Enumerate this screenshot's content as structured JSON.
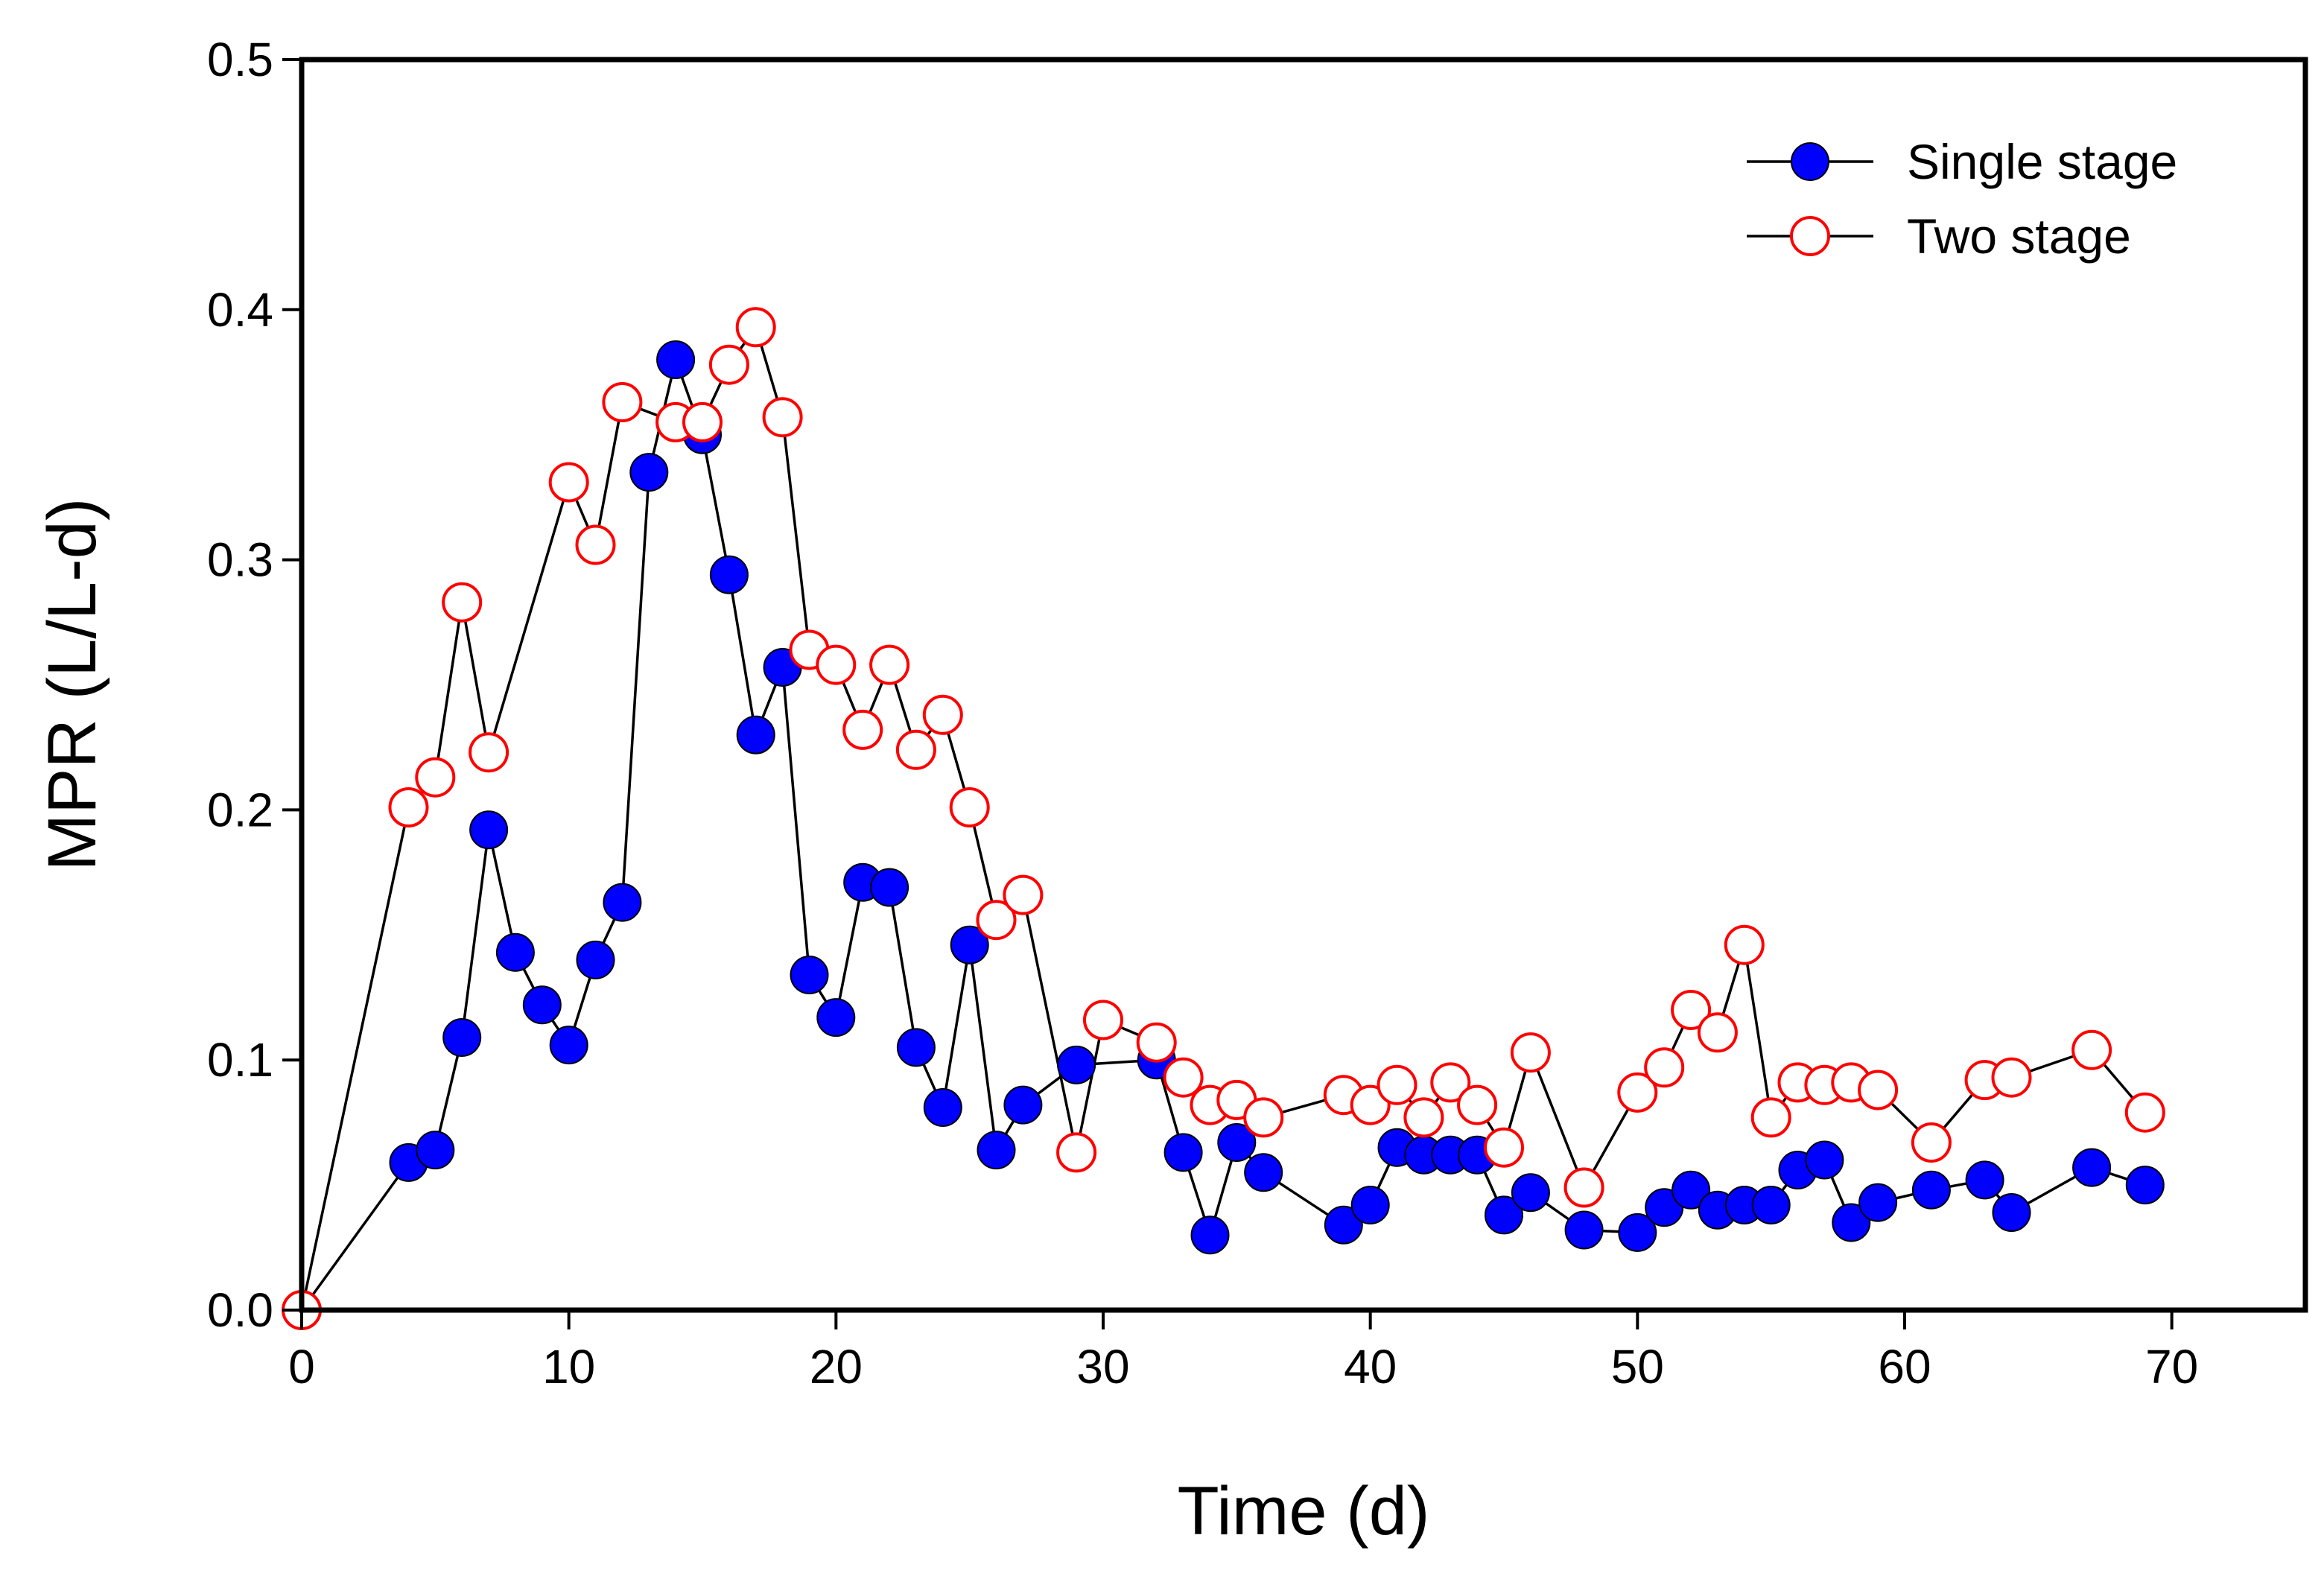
{
  "chart_data": {
    "type": "line",
    "xlabel": "Time (d)",
    "ylabel": "MPR (L/L-d)",
    "xlim": [
      0,
      75
    ],
    "ylim": [
      0,
      0.5
    ],
    "xticks": [
      0,
      10,
      20,
      30,
      40,
      50,
      60,
      70
    ],
    "xtick_labels": [
      "0",
      "10",
      "20",
      "30",
      "40",
      "50",
      "60",
      "70"
    ],
    "yticks": [
      0,
      0.1,
      0.2,
      0.3,
      0.4,
      0.5
    ],
    "ytick_labels": [
      "0.0",
      "0.1",
      "0.2",
      "0.3",
      "0.4",
      "0.5"
    ],
    "grid": false,
    "legend_position": "top-right",
    "series": [
      {
        "name": "Single stage",
        "marker": "filled-circle",
        "color": "#0000ff",
        "points": [
          [
            0,
            0
          ],
          [
            4,
            0.059
          ],
          [
            5,
            0.064
          ],
          [
            6,
            0.109
          ],
          [
            7,
            0.192
          ],
          [
            8,
            0.143
          ],
          [
            9,
            0.122
          ],
          [
            10,
            0.106
          ],
          [
            11,
            0.14
          ],
          [
            12,
            0.163
          ],
          [
            13,
            0.335
          ],
          [
            14,
            0.38
          ],
          [
            15,
            0.35
          ],
          [
            16,
            0.294
          ],
          [
            17,
            0.23
          ],
          [
            18,
            0.257
          ],
          [
            19,
            0.134
          ],
          [
            20,
            0.117
          ],
          [
            21,
            0.171
          ],
          [
            22,
            0.169
          ],
          [
            23,
            0.105
          ],
          [
            24,
            0.081
          ],
          [
            25,
            0.146
          ],
          [
            26,
            0.064
          ],
          [
            27,
            0.082
          ],
          [
            29,
            0.098
          ],
          [
            32,
            0.1
          ],
          [
            33,
            0.063
          ],
          [
            34,
            0.03
          ],
          [
            35,
            0.067
          ],
          [
            36,
            0.055
          ],
          [
            39,
            0.034
          ],
          [
            40,
            0.042
          ],
          [
            41,
            0.065
          ],
          [
            42,
            0.062
          ],
          [
            43,
            0.062
          ],
          [
            44,
            0.062
          ],
          [
            45,
            0.038
          ],
          [
            46,
            0.047
          ],
          [
            48,
            0.032
          ],
          [
            50,
            0.031
          ],
          [
            51,
            0.041
          ],
          [
            52,
            0.048
          ],
          [
            53,
            0.04
          ],
          [
            54,
            0.042
          ],
          [
            55,
            0.042
          ],
          [
            56,
            0.056
          ],
          [
            57,
            0.06
          ],
          [
            58,
            0.035
          ],
          [
            59,
            0.043
          ],
          [
            61,
            0.048
          ],
          [
            63,
            0.052
          ],
          [
            64,
            0.039
          ],
          [
            67,
            0.057
          ],
          [
            69,
            0.05
          ]
        ]
      },
      {
        "name": "Two stage",
        "marker": "open-circle",
        "color": "#ff0000",
        "points": [
          [
            0,
            0
          ],
          [
            4,
            0.201
          ],
          [
            5,
            0.213
          ],
          [
            6,
            0.283
          ],
          [
            7,
            0.223
          ],
          [
            10,
            0.331
          ],
          [
            11,
            0.306
          ],
          [
            12,
            0.363
          ],
          [
            14,
            0.355
          ],
          [
            15,
            0.355
          ],
          [
            16,
            0.378
          ],
          [
            17,
            0.393
          ],
          [
            18,
            0.357
          ],
          [
            19,
            0.264
          ],
          [
            20,
            0.258
          ],
          [
            21,
            0.232
          ],
          [
            22,
            0.258
          ],
          [
            23,
            0.224
          ],
          [
            24,
            0.238
          ],
          [
            25,
            0.201
          ],
          [
            26,
            0.156
          ],
          [
            27,
            0.166
          ],
          [
            29,
            0.063
          ],
          [
            30,
            0.116
          ],
          [
            32,
            0.107
          ],
          [
            33,
            0.093
          ],
          [
            34,
            0.082
          ],
          [
            35,
            0.084
          ],
          [
            36,
            0.077
          ],
          [
            39,
            0.086
          ],
          [
            40,
            0.082
          ],
          [
            41,
            0.09
          ],
          [
            42,
            0.077
          ],
          [
            43,
            0.091
          ],
          [
            44,
            0.082
          ],
          [
            45,
            0.065
          ],
          [
            46,
            0.103
          ],
          [
            48,
            0.049
          ],
          [
            50,
            0.087
          ],
          [
            51,
            0.097
          ],
          [
            52,
            0.12
          ],
          [
            53,
            0.111
          ],
          [
            54,
            0.146
          ],
          [
            55,
            0.077
          ],
          [
            56,
            0.091
          ],
          [
            57,
            0.09
          ],
          [
            58,
            0.091
          ],
          [
            59,
            0.088
          ],
          [
            61,
            0.067
          ],
          [
            63,
            0.092
          ],
          [
            64,
            0.093
          ],
          [
            67,
            0.104
          ],
          [
            69,
            0.079
          ]
        ]
      }
    ]
  }
}
